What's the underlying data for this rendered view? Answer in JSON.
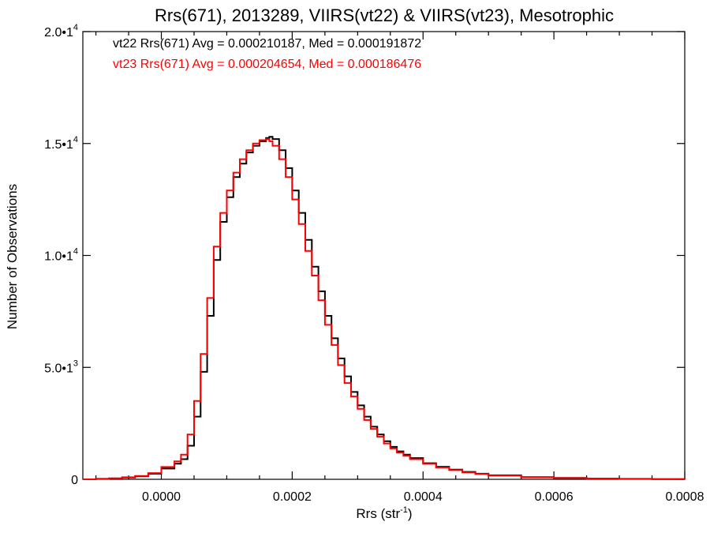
{
  "chart_data": {
    "type": "line",
    "title": "Rrs(671), 2013289, VIIRS(vt22) & VIIRS(vt23), Mesotrophic",
    "xlabel": "Rrs (str",
    "xlabel_sup": "-1",
    "xlabel_close": ")",
    "ylabel": "Number of Observations",
    "xlim": [
      -0.00012,
      0.0008
    ],
    "ylim": [
      0,
      20000
    ],
    "x_ticks": [
      {
        "value": 0.0,
        "label": "0.0000"
      },
      {
        "value": 0.0002,
        "label": "0.0002"
      },
      {
        "value": 0.0004,
        "label": "0.0004"
      },
      {
        "value": 0.0006,
        "label": "0.0006"
      },
      {
        "value": 0.0008,
        "label": "0.0008"
      }
    ],
    "y_ticks": [
      {
        "value": 0,
        "mant": "0",
        "exp": ""
      },
      {
        "value": 5000,
        "mant": "5.0•1",
        "exp": "3"
      },
      {
        "value": 10000,
        "mant": "1.0•1",
        "exp": "4"
      },
      {
        "value": 15000,
        "mant": "1.5•1",
        "exp": "4"
      },
      {
        "value": 20000,
        "mant": "2.0•1",
        "exp": "4"
      }
    ],
    "annotations": [
      {
        "text": "vt22 Rrs(671) Avg = 0.000210187, Med = 0.000191872",
        "color": "#000000"
      },
      {
        "text": "vt23 Rrs(671) Avg = 0.000204654, Med = 0.000186476",
        "color": "#ff0000"
      }
    ],
    "series": [
      {
        "color": "#000000",
        "x": [
          -0.00012,
          -0.0001,
          -8e-05,
          -6e-05,
          -4e-05,
          -2e-05,
          0.0,
          2e-05,
          3e-05,
          4e-05,
          5e-05,
          6e-05,
          7e-05,
          8e-05,
          9e-05,
          0.0001,
          0.00011,
          0.00012,
          0.00013,
          0.00014,
          0.00015,
          0.00016,
          0.000165,
          0.00017,
          0.00018,
          0.00019,
          0.0002,
          0.00021,
          0.00022,
          0.00023,
          0.00024,
          0.00025,
          0.00026,
          0.00027,
          0.00028,
          0.00029,
          0.0003,
          0.00031,
          0.00032,
          0.00033,
          0.00034,
          0.00035,
          0.00036,
          0.00037,
          0.00038,
          0.0004,
          0.00042,
          0.00044,
          0.00046,
          0.00048,
          0.0005,
          0.00055,
          0.0006,
          0.00065,
          0.0007,
          0.00075,
          0.0008
        ],
        "y": [
          0,
          20,
          40,
          80,
          130,
          250,
          480,
          700,
          900,
          1500,
          2800,
          4800,
          7300,
          9800,
          11500,
          12600,
          13500,
          14100,
          14600,
          14900,
          15100,
          15250,
          15300,
          15200,
          14700,
          13900,
          12900,
          11900,
          10700,
          9500,
          8400,
          7300,
          6300,
          5400,
          4600,
          3900,
          3300,
          2800,
          2350,
          2000,
          1700,
          1450,
          1250,
          1100,
          950,
          720,
          560,
          430,
          330,
          250,
          180,
          100,
          60,
          35,
          20,
          10,
          5
        ]
      },
      {
        "color": "#ff0000",
        "x": [
          -0.00012,
          -0.0001,
          -8e-05,
          -6e-05,
          -4e-05,
          -2e-05,
          0.0,
          2e-05,
          3e-05,
          4e-05,
          5e-05,
          6e-05,
          7e-05,
          8e-05,
          9e-05,
          0.0001,
          0.00011,
          0.00012,
          0.00013,
          0.00014,
          0.00015,
          0.00016,
          0.000165,
          0.00017,
          0.00018,
          0.00019,
          0.0002,
          0.00021,
          0.00022,
          0.00023,
          0.00024,
          0.00025,
          0.00026,
          0.00027,
          0.00028,
          0.00029,
          0.0003,
          0.00031,
          0.00032,
          0.00033,
          0.00034,
          0.00035,
          0.00036,
          0.00037,
          0.00038,
          0.0004,
          0.00042,
          0.00044,
          0.00046,
          0.00048,
          0.0005,
          0.00055,
          0.0006,
          0.00065,
          0.0007,
          0.00075,
          0.0008
        ],
        "y": [
          0,
          20,
          45,
          90,
          150,
          280,
          550,
          800,
          1100,
          2000,
          3500,
          5600,
          8100,
          10400,
          11900,
          12900,
          13700,
          14300,
          14700,
          15000,
          15150,
          15200,
          15100,
          14900,
          14300,
          13500,
          12500,
          11400,
          10200,
          9100,
          8000,
          6900,
          6000,
          5100,
          4300,
          3700,
          3150,
          2650,
          2250,
          1900,
          1600,
          1380,
          1190,
          1050,
          900,
          690,
          530,
          410,
          310,
          235,
          170,
          95,
          55,
          32,
          18,
          9,
          4
        ]
      }
    ]
  }
}
